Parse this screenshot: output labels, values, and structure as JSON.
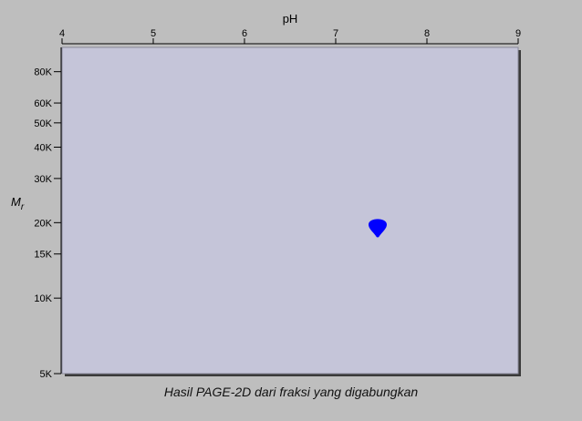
{
  "caption": "Hasil PAGE-2D dari fraksi yang digabungkan",
  "colors": {
    "background": "#bebebe",
    "plot_area": "#c5c5d9",
    "spot": "#0000ff",
    "shadow": "#3a3a3a"
  },
  "chart_data": {
    "type": "scatter",
    "title": "",
    "xlabel": "pH",
    "ylabel_main": "M",
    "ylabel_sub": "r",
    "xlim": [
      4,
      9
    ],
    "ylim": [
      5000,
      100000
    ],
    "yscale": "log",
    "grid": false,
    "x_ticks": [
      {
        "value": 4,
        "label": "4"
      },
      {
        "value": 5,
        "label": "5"
      },
      {
        "value": 6,
        "label": "6"
      },
      {
        "value": 7,
        "label": "7"
      },
      {
        "value": 8,
        "label": "8"
      },
      {
        "value": 9,
        "label": "9"
      }
    ],
    "y_ticks": [
      {
        "value": 80000,
        "label": "80K"
      },
      {
        "value": 60000,
        "label": "60K"
      },
      {
        "value": 50000,
        "label": "50K"
      },
      {
        "value": 40000,
        "label": "40K"
      },
      {
        "value": 30000,
        "label": "30K"
      },
      {
        "value": 20000,
        "label": "20K"
      },
      {
        "value": 15000,
        "label": "15K"
      },
      {
        "value": 10000,
        "label": "10K"
      },
      {
        "value": 5000,
        "label": "5K"
      }
    ],
    "points": [
      {
        "x": 7.46,
        "y": 19500
      }
    ]
  }
}
